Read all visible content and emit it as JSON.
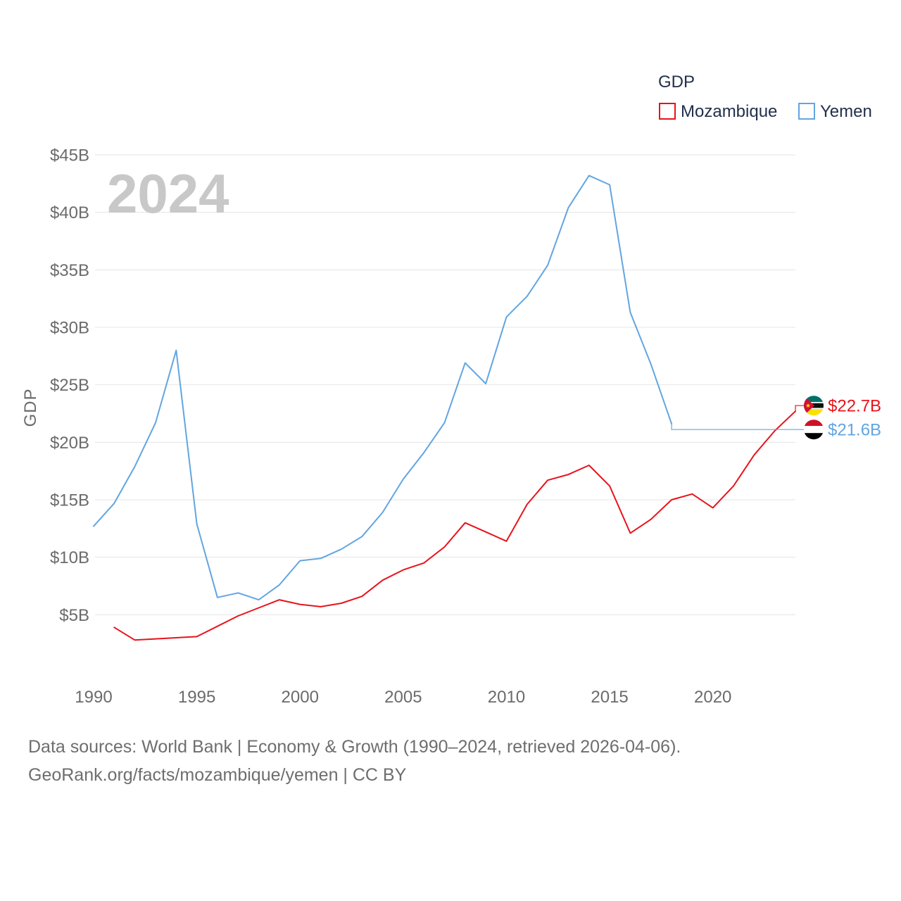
{
  "chart_data": {
    "type": "line",
    "title": "",
    "xlabel": "",
    "ylabel": "GDP",
    "legend_title": "GDP",
    "legend_position": "top-right",
    "current_year_label": "2024",
    "grid": true,
    "xlim": [
      1990,
      2024
    ],
    "ylim": [
      0,
      45
    ],
    "xticks": [
      {
        "value": 1990,
        "label": "1990"
      },
      {
        "value": 1995,
        "label": "1995"
      },
      {
        "value": 2000,
        "label": "2000"
      },
      {
        "value": 2005,
        "label": "2005"
      },
      {
        "value": 2010,
        "label": "2010"
      },
      {
        "value": 2015,
        "label": "2015"
      },
      {
        "value": 2020,
        "label": "2020"
      }
    ],
    "yticks": [
      {
        "value": 5,
        "label": "$5B"
      },
      {
        "value": 10,
        "label": "$10B"
      },
      {
        "value": 15,
        "label": "$15B"
      },
      {
        "value": 20,
        "label": "$20B"
      },
      {
        "value": 25,
        "label": "$25B"
      },
      {
        "value": 30,
        "label": "$30B"
      },
      {
        "value": 35,
        "label": "$35B"
      },
      {
        "value": 40,
        "label": "$40B"
      },
      {
        "value": 45,
        "label": "$45B"
      }
    ],
    "series": [
      {
        "name": "Mozambique",
        "color": "#e8131b",
        "flag_icon": "mozambique-flag-icon",
        "end_label": "$22.7B",
        "x": [
          1991,
          1992,
          1993,
          1994,
          1995,
          1996,
          1997,
          1998,
          1999,
          2000,
          2001,
          2002,
          2003,
          2004,
          2005,
          2006,
          2007,
          2008,
          2009,
          2010,
          2011,
          2012,
          2013,
          2014,
          2015,
          2016,
          2017,
          2018,
          2019,
          2020,
          2021,
          2022,
          2023,
          2024
        ],
        "values": [
          3.9,
          2.8,
          2.9,
          3.0,
          3.1,
          4.0,
          4.9,
          5.6,
          6.3,
          5.9,
          5.7,
          6.0,
          6.6,
          8.0,
          8.9,
          9.5,
          10.9,
          13.0,
          12.2,
          11.4,
          14.6,
          16.7,
          17.2,
          18.0,
          16.2,
          12.1,
          13.3,
          15.0,
          15.5,
          14.3,
          16.2,
          18.9,
          21.0,
          22.7
        ]
      },
      {
        "name": "Yemen",
        "color": "#62a5e1",
        "flag_icon": "yemen-flag-icon",
        "end_label": "$21.6B",
        "x": [
          1990,
          1991,
          1992,
          1993,
          1994,
          1995,
          1996,
          1997,
          1998,
          1999,
          2000,
          2001,
          2002,
          2003,
          2004,
          2005,
          2006,
          2007,
          2008,
          2009,
          2010,
          2011,
          2012,
          2013,
          2014,
          2015,
          2016,
          2017,
          2018
        ],
        "values": [
          12.7,
          14.7,
          17.9,
          21.7,
          28.0,
          12.9,
          6.5,
          6.9,
          6.3,
          7.6,
          9.7,
          9.9,
          10.7,
          11.8,
          13.9,
          16.8,
          19.1,
          21.7,
          26.9,
          25.1,
          30.9,
          32.7,
          35.4,
          40.4,
          43.2,
          42.4,
          31.3,
          26.8,
          21.6
        ]
      }
    ]
  },
  "footer": {
    "source_line": "Data sources: World Bank | Economy & Growth (1990–2024, retrieved 2026-04-06).",
    "credit_line": "GeoRank.org/facts/mozambique/yemen | CC BY"
  }
}
